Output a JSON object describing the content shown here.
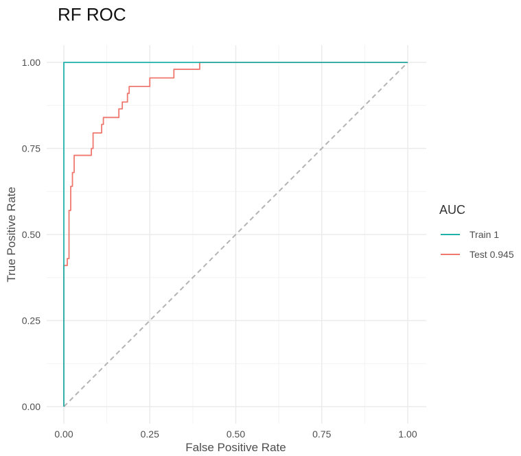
{
  "chart_data": {
    "type": "line",
    "title": "RF ROC",
    "xlabel": "False Positive Rate",
    "ylabel": "True Positive Rate",
    "xlim": [
      0,
      1
    ],
    "ylim": [
      0,
      1
    ],
    "x_ticks": [
      "0.00",
      "0.25",
      "0.50",
      "0.75",
      "1.00"
    ],
    "y_ticks": [
      "0.00",
      "0.25",
      "0.50",
      "0.75",
      "1.00"
    ],
    "grid": true,
    "legend_title": "AUC",
    "legend_position": "right",
    "reference_line": {
      "x": [
        0,
        1
      ],
      "y": [
        0,
        1
      ],
      "style": "dashed",
      "color": "#b3b3b3"
    },
    "series": [
      {
        "name": "Train 1",
        "color": "#20b2aa",
        "x": [
          0,
          0,
          1
        ],
        "y": [
          0,
          1,
          1
        ]
      },
      {
        "name": "Test 0.945",
        "color": "#f0776d",
        "x": [
          0,
          0,
          0.01,
          0.01,
          0.015,
          0.015,
          0.02,
          0.02,
          0.025,
          0.025,
          0.03,
          0.03,
          0.08,
          0.08,
          0.085,
          0.085,
          0.11,
          0.11,
          0.115,
          0.115,
          0.16,
          0.16,
          0.17,
          0.17,
          0.185,
          0.185,
          0.19,
          0.19,
          0.25,
          0.25,
          0.32,
          0.32,
          0.39,
          0.395,
          0.395,
          0.4,
          1
        ],
        "y": [
          0,
          0.41,
          0.41,
          0.43,
          0.43,
          0.57,
          0.57,
          0.64,
          0.64,
          0.68,
          0.68,
          0.73,
          0.73,
          0.75,
          0.75,
          0.795,
          0.795,
          0.82,
          0.82,
          0.84,
          0.84,
          0.865,
          0.865,
          0.885,
          0.885,
          0.91,
          0.91,
          0.93,
          0.93,
          0.955,
          0.955,
          0.98,
          0.98,
          0.98,
          1.0,
          1.0,
          1.0
        ]
      }
    ]
  }
}
